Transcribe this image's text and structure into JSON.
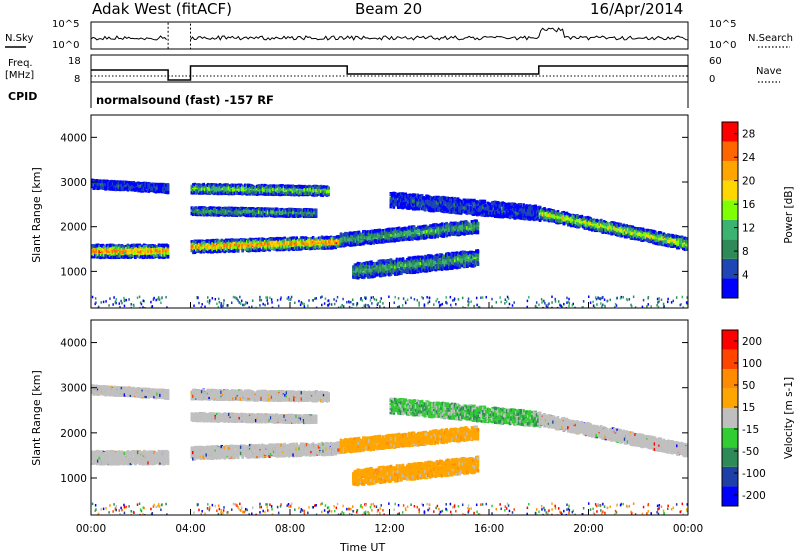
{
  "header": {
    "station": "Adak West (fitACF)",
    "beam": "Beam 20",
    "date": "16/Apr/2014"
  },
  "noise_panel": {
    "left_label": "N.Sky",
    "right_label": "N.Search",
    "left_ticks": [
      "10^5",
      "10^0"
    ],
    "right_ticks": [
      "10^5",
      "10^0"
    ]
  },
  "freq_panel": {
    "left_label_1": "Freq.",
    "left_label_2": "[MHz]",
    "left_ticks": [
      "18",
      "8"
    ],
    "right_label": "Nave",
    "right_ticks": [
      "60",
      "0"
    ],
    "cpid_label": "CPID",
    "cpid_text": "normalsound (fast) -157 RF"
  },
  "colors": {
    "power_scale": [
      "#0000ff",
      "#1e46b4",
      "#2e8b57",
      "#3cb371",
      "#7fff00",
      "#ffd700",
      "#ffa500",
      "#ff6600",
      "#ff0000"
    ],
    "velocity_scale": [
      "#0000ff",
      "#1f3fa8",
      "#2e8b57",
      "#32cd32",
      "#bfbfbf",
      "#ffa500",
      "#ff8c00",
      "#ff4500",
      "#ff0000"
    ],
    "ground_scatter": "#c0c0c0"
  },
  "chart_data": [
    {
      "type": "heatmap",
      "title": "",
      "xlabel": "",
      "ylabel": "Slant Range [km]",
      "x_ticks": [
        "00:00",
        "04:00",
        "08:00",
        "12:00",
        "16:00",
        "20:00",
        "00:00"
      ],
      "y_ticks": [
        1000,
        2000,
        3000,
        4000
      ],
      "xlim": [
        0,
        24
      ],
      "ylim": [
        180,
        4500
      ],
      "colorbar": {
        "label": "Power [dB]",
        "ticks": [
          4,
          8,
          12,
          16,
          20,
          24,
          28
        ],
        "range": [
          0,
          30
        ]
      },
      "data_gap_hours": [
        3.1,
        4.0
      ],
      "series": [
        {
          "name_hint": "band",
          "x": [
            0,
            3.1
          ],
          "y": [
            1450,
            1450
          ]
        },
        {
          "name_hint": "band",
          "x": [
            4.0,
            9.9
          ],
          "y": [
            1550,
            1650
          ]
        },
        {
          "name_hint": "band",
          "x": [
            0,
            3.1
          ],
          "y": [
            2950,
            2850
          ]
        },
        {
          "name_hint": "band",
          "x": [
            4.0,
            9.5
          ],
          "y": [
            2850,
            2800
          ]
        },
        {
          "name_hint": "band",
          "x": [
            4.0,
            9.0
          ],
          "y": [
            2350,
            2300
          ]
        },
        {
          "name_hint": "band",
          "x": [
            10.0,
            15.5
          ],
          "y": [
            1700,
            2000
          ]
        },
        {
          "name_hint": "band",
          "x": [
            10.5,
            15.5
          ],
          "y": [
            1000,
            1300
          ]
        },
        {
          "name_hint": "band",
          "x": [
            12.0,
            18.0
          ],
          "y": [
            2600,
            2300
          ]
        },
        {
          "name_hint": "band",
          "x": [
            18.0,
            24.0
          ],
          "y": [
            2300,
            1600
          ]
        }
      ]
    },
    {
      "type": "heatmap",
      "title": "",
      "xlabel": "Time UT",
      "ylabel": "Slant Range [km]",
      "x_ticks": [
        "00:00",
        "04:00",
        "08:00",
        "12:00",
        "16:00",
        "20:00",
        "00:00"
      ],
      "y_ticks": [
        1000,
        2000,
        3000,
        4000
      ],
      "xlim": [
        0,
        24
      ],
      "ylim": [
        180,
        4500
      ],
      "colorbar": {
        "label": "Velocity [m s-1]",
        "ticks": [
          200,
          100,
          50,
          15,
          -15,
          -50,
          -100,
          -200
        ]
      }
    }
  ]
}
